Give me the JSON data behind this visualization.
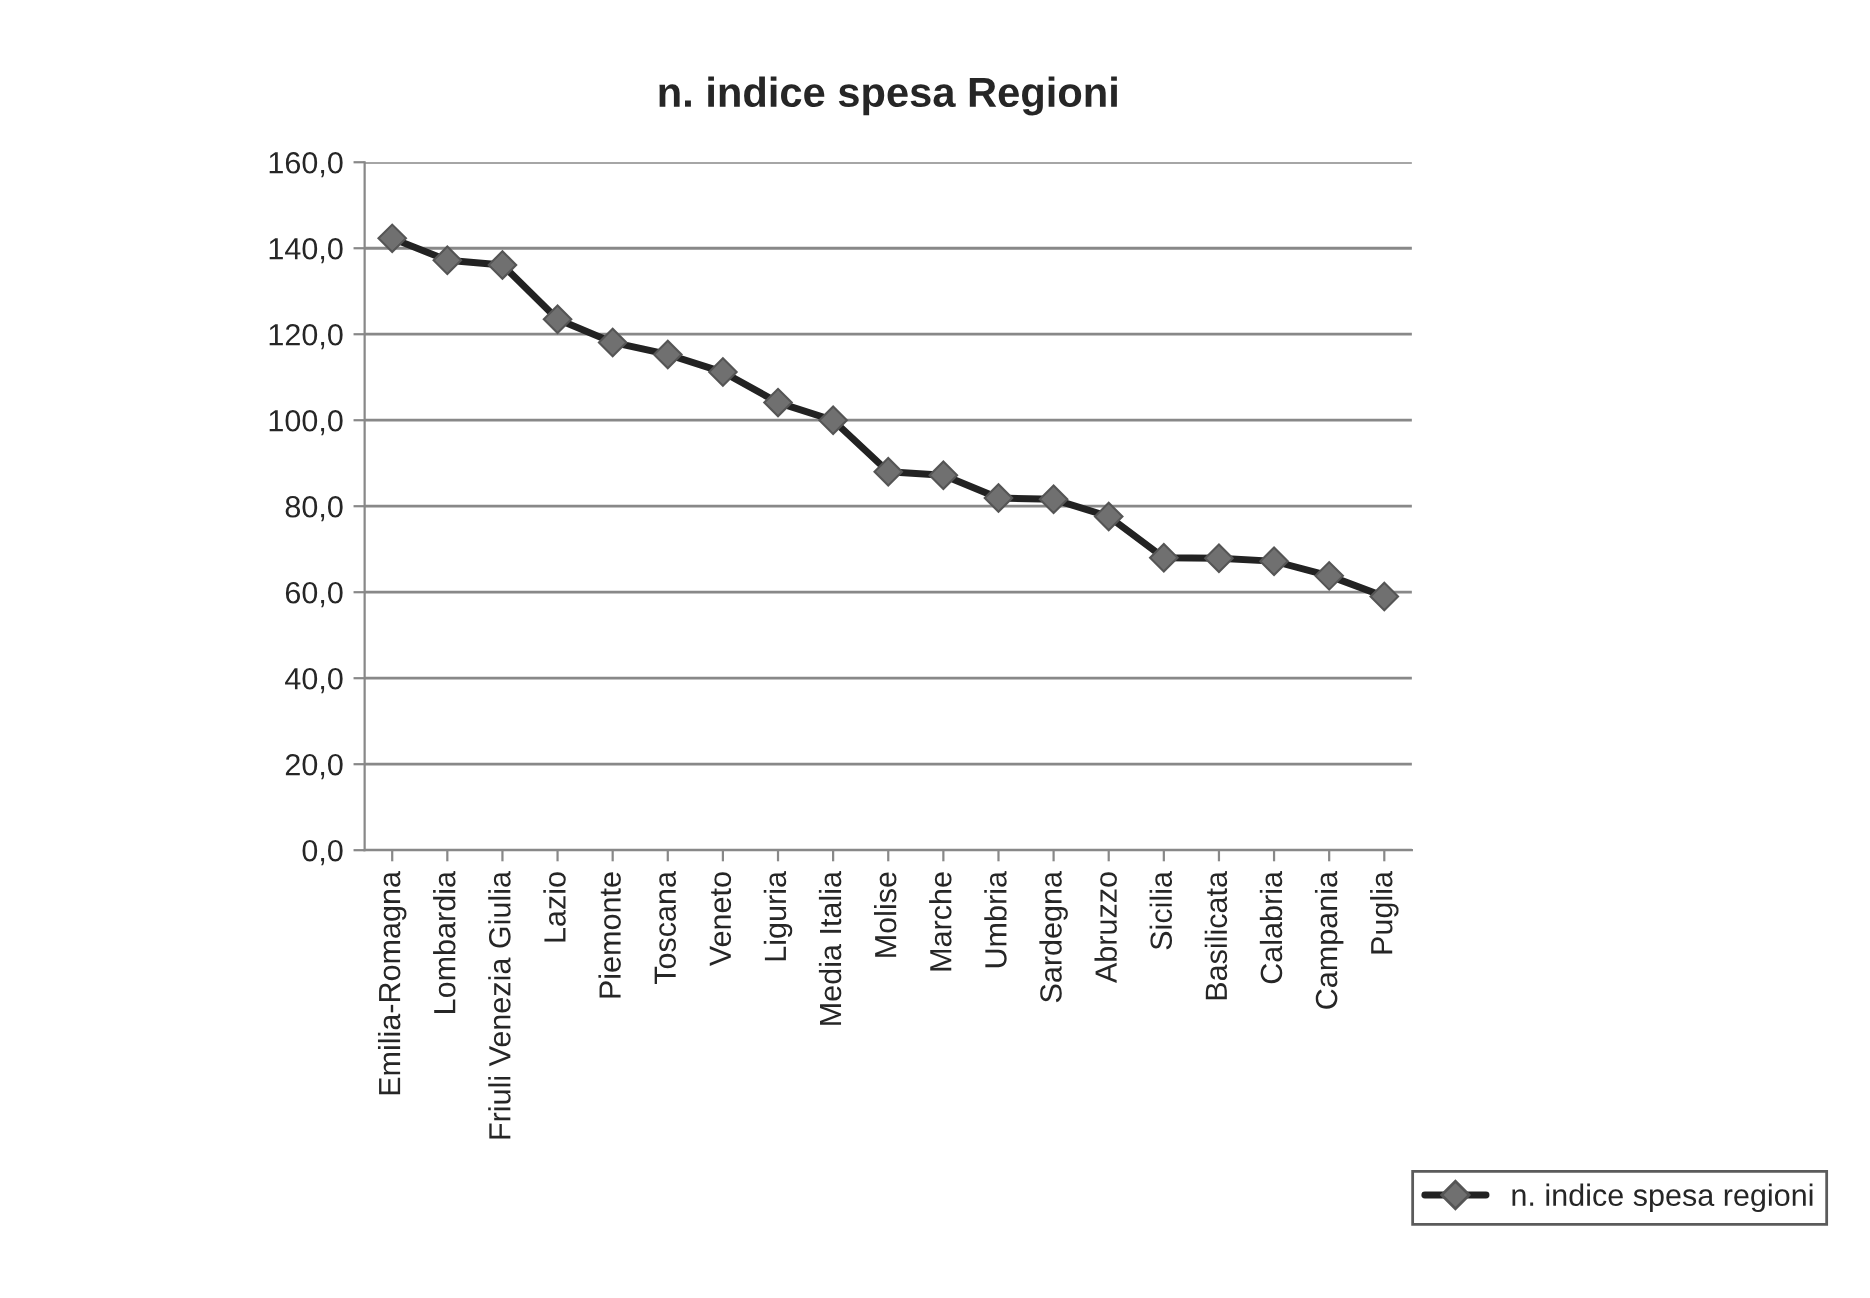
{
  "chart_data": {
    "type": "line",
    "title": "n. indice spesa Regioni",
    "categories": [
      "Emilia-Romagna",
      "Lombardia",
      "Friuli Venezia Giulia",
      "Lazio",
      "Piemonte",
      "Toscana",
      "Veneto",
      "Liguria",
      "Media Italia",
      "Molise",
      "Marche",
      "Umbria",
      "Sardegna",
      "Abruzzo",
      "Sicilia",
      "Basilicata",
      "Calabria",
      "Campania",
      "Puglia"
    ],
    "series": [
      {
        "name": "n. indice spesa regioni",
        "color": "#222222",
        "values": [
          142.3,
          137.2,
          136.1,
          123.5,
          118.1,
          115.3,
          111.2,
          104.1,
          100.0,
          88.0,
          87.2,
          81.9,
          81.6,
          77.6,
          68.0,
          67.9,
          67.2,
          63.8,
          59.0
        ]
      }
    ],
    "ylim": [
      0,
      160
    ],
    "yticks": [
      {
        "value": 0,
        "label": "0,0"
      },
      {
        "value": 20,
        "label": "20,0"
      },
      {
        "value": 40,
        "label": "40,0"
      },
      {
        "value": 60,
        "label": "60,0"
      },
      {
        "value": 80,
        "label": "80,0"
      },
      {
        "value": 100,
        "label": "100,0"
      },
      {
        "value": 120,
        "label": "120,0"
      },
      {
        "value": 140,
        "label": "140,0"
      },
      {
        "value": 160,
        "label": "160,0"
      }
    ],
    "grid": "y",
    "legend": "bottom right",
    "marker": "diamond",
    "line_style": "solid"
  }
}
